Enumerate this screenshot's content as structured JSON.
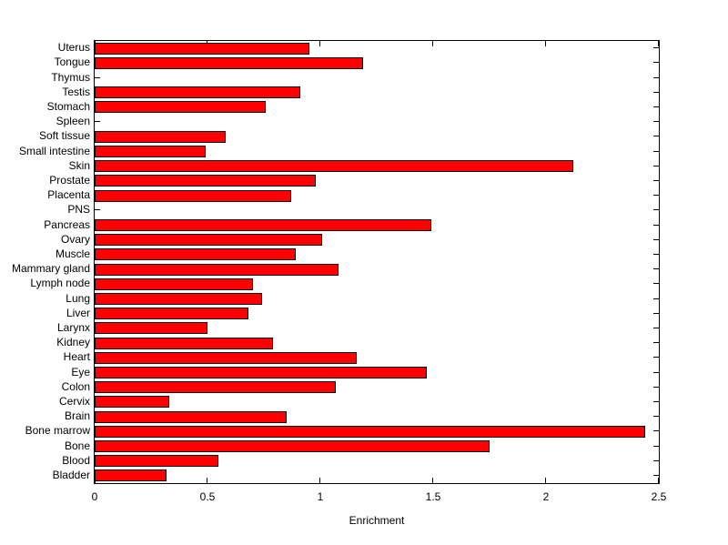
{
  "figure": {
    "background_color": "#ffffff"
  },
  "chart_data": {
    "type": "bar",
    "orientation": "horizontal",
    "title": "",
    "xlabel": "Enrichment",
    "ylabel": "",
    "xlim": [
      0,
      2.5
    ],
    "xticks": [
      0,
      0.5,
      1,
      1.5,
      2,
      2.5
    ],
    "xtick_labels": [
      "0",
      "0.5",
      "1",
      "1.5",
      "2",
      "2.5"
    ],
    "grid": false,
    "legend_position": "none",
    "bar_fill_color": "#ff0000",
    "bar_edge_color": "#000000",
    "axis_color": "#000000",
    "text_color": "#000000",
    "categories": [
      "Uterus",
      "Tongue",
      "Thymus",
      "Testis",
      "Stomach",
      "Spleen",
      "Soft tissue",
      "Small intestine",
      "Skin",
      "Prostate",
      "Placenta",
      "PNS",
      "Pancreas",
      "Ovary",
      "Muscle",
      "Mammary gland",
      "Lymph node",
      "Lung",
      "Liver",
      "Larynx",
      "Kidney",
      "Heart",
      "Eye",
      "Colon",
      "Cervix",
      "Brain",
      "Bone marrow",
      "Bone",
      "Blood",
      "Bladder"
    ],
    "values": [
      0.95,
      1.19,
      0,
      0.91,
      0.76,
      0,
      0.58,
      0.49,
      2.12,
      0.98,
      0.87,
      0,
      1.49,
      1.01,
      0.89,
      1.08,
      0.7,
      0.74,
      0.68,
      0.5,
      0.79,
      1.16,
      1.47,
      1.07,
      0.33,
      0.85,
      2.44,
      1.75,
      0.55,
      0.32
    ]
  }
}
